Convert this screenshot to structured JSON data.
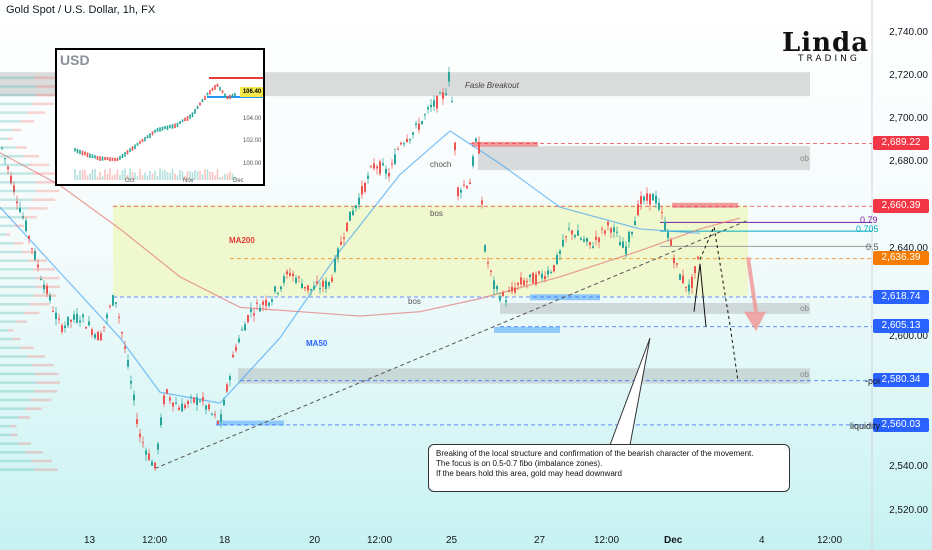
{
  "header": {
    "title": "Gold Spot / U.S. Dollar, 1h, FX"
  },
  "logo": {
    "main": "Linda",
    "sub": "TRADING"
  },
  "chart_data": {
    "type": "candlestick",
    "title": "Gold Spot / U.S. Dollar, 1h, FX",
    "ylim": [
      2510,
      2750
    ],
    "y_ticks": [
      {
        "value": 2740,
        "label": "2,740.00"
      },
      {
        "value": 2720,
        "label": "2,720.00"
      },
      {
        "value": 2700,
        "label": "2,700.00"
      },
      {
        "value": 2680,
        "label": "2,680.00"
      },
      {
        "value": 2640,
        "label": "2,640.00"
      },
      {
        "value": 2600,
        "label": "2,600.00"
      },
      {
        "value": 2540,
        "label": "2,540.00"
      },
      {
        "value": 2520,
        "label": "2,520.00"
      }
    ],
    "x_ticks": [
      "13",
      "12:00",
      "18",
      "20",
      "12:00",
      "25",
      "27",
      "12:00",
      "Dec",
      "4",
      "12:00"
    ],
    "price_levels": [
      {
        "value": 2689.22,
        "label": "2,689.22",
        "color": "#f23645"
      },
      {
        "value": 2660.39,
        "label": "2,660.39",
        "color": "#f23645"
      },
      {
        "value": 2636.39,
        "label": "2,636.39",
        "color": "#f57c00"
      },
      {
        "value": 2618.74,
        "label": "2,618.74",
        "color": "#2962ff"
      },
      {
        "value": 2605.13,
        "label": "2,605.13",
        "color": "#2962ff"
      },
      {
        "value": 2580.34,
        "label": "2,580.34",
        "color": "#2962ff"
      },
      {
        "value": 2560.03,
        "label": "2,560.03",
        "color": "#2962ff"
      }
    ],
    "fib_levels": [
      {
        "ratio": "0.79",
        "value": 2653
      },
      {
        "ratio": "0.705",
        "value": 2649
      },
      {
        "ratio": "0.5",
        "value": 2642
      }
    ],
    "zones": [
      {
        "label": "Fasle Breakout",
        "from": 2711,
        "to": 2722
      },
      {
        "label": "ob",
        "from": 2677,
        "to": 2688
      },
      {
        "label": "ob",
        "from": 2611,
        "to": 2616
      },
      {
        "label": "ob",
        "from": 2579,
        "to": 2586
      }
    ],
    "annotations": [
      {
        "text": "MA200",
        "color": "#e53935"
      },
      {
        "text": "MA50",
        "color": "#2962ff"
      },
      {
        "text": "bos",
        "color": "#555555"
      },
      {
        "text": "choch",
        "color": "#555555"
      },
      {
        "text": "bos",
        "color": "#555555"
      },
      {
        "text": "-poi",
        "color": "#131722"
      },
      {
        "text": "liquidity",
        "color": "#131722"
      }
    ],
    "series": [
      {
        "name": "MA200"
      },
      {
        "name": "MA50"
      }
    ],
    "path": [
      [
        0,
        2690
      ],
      [
        20,
        2660
      ],
      [
        40,
        2630
      ],
      [
        60,
        2605
      ],
      [
        80,
        2610
      ],
      [
        100,
        2600
      ],
      [
        115,
        2620
      ],
      [
        125,
        2595
      ],
      [
        140,
        2555
      ],
      [
        155,
        2540
      ],
      [
        165,
        2575
      ],
      [
        180,
        2568
      ],
      [
        200,
        2572
      ],
      [
        220,
        2560
      ],
      [
        235,
        2595
      ],
      [
        250,
        2612
      ],
      [
        270,
        2618
      ],
      [
        290,
        2630
      ],
      [
        310,
        2622
      ],
      [
        330,
        2625
      ],
      [
        345,
        2650
      ],
      [
        360,
        2665
      ],
      [
        375,
        2680
      ],
      [
        390,
        2675
      ],
      [
        400,
        2690
      ],
      [
        415,
        2695
      ],
      [
        430,
        2705
      ],
      [
        445,
        2712
      ],
      [
        450,
        2722
      ],
      [
        458,
        2668
      ],
      [
        470,
        2672
      ],
      [
        478,
        2695
      ],
      [
        485,
        2640
      ],
      [
        495,
        2622
      ],
      [
        505,
        2618
      ],
      [
        520,
        2625
      ],
      [
        540,
        2628
      ],
      [
        555,
        2633
      ],
      [
        570,
        2650
      ],
      [
        590,
        2642
      ],
      [
        610,
        2652
      ],
      [
        625,
        2640
      ],
      [
        640,
        2662
      ],
      [
        655,
        2665
      ],
      [
        668,
        2648
      ],
      [
        678,
        2630
      ],
      [
        690,
        2622
      ],
      [
        700,
        2638
      ]
    ]
  },
  "callout": {
    "line1": "Breaking of the local structure and confirmation of the bearish character of the movement.",
    "line2": "The focus is on 0.5-0.7 fibo (imbalance zones).",
    "line3": "If the bears hold this area, gold may head downward"
  },
  "inset": {
    "title": "USD",
    "badge": "106.40",
    "y_ticks": [
      "104.00",
      "102.00",
      "100.00"
    ],
    "x_ticks": [
      "Oct",
      "Nov",
      "Dec"
    ]
  }
}
